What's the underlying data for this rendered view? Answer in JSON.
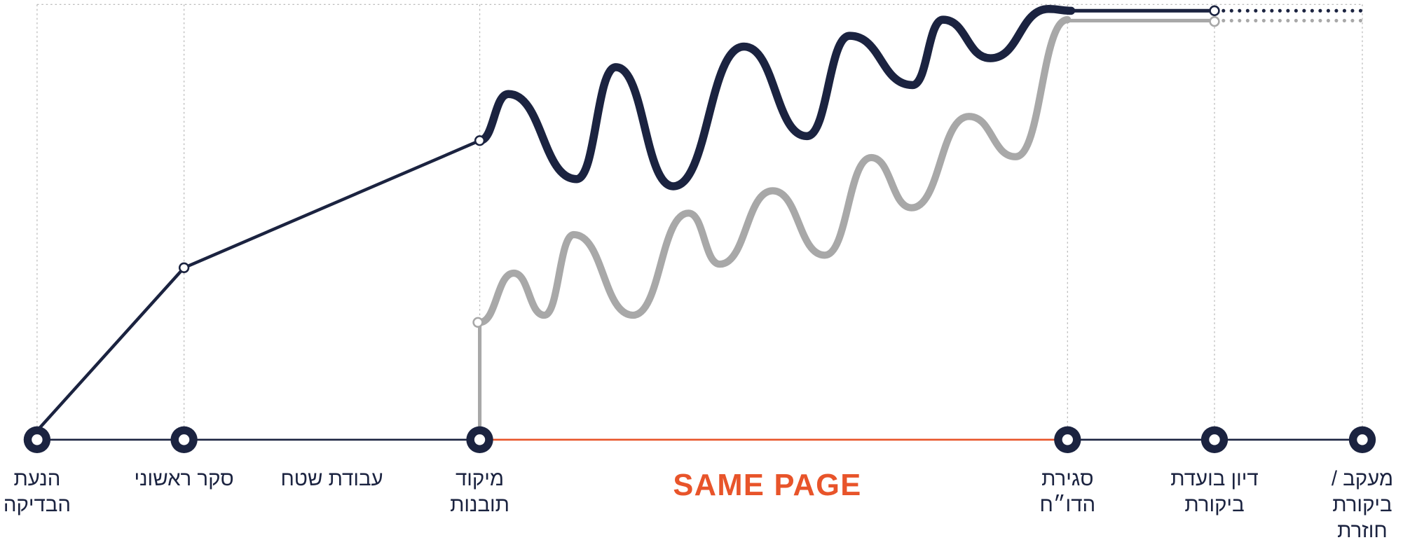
{
  "timeline": {
    "milestones": [
      {
        "lines": [
          "הנעת",
          "הבדיקה"
        ]
      },
      {
        "lines": [
          "סקר ראשוני"
        ]
      },
      {
        "lines": [
          "מיקוד",
          "תובנות"
        ]
      },
      {
        "lines": [
          "סגירת",
          "הדו״ח"
        ]
      },
      {
        "lines": [
          "דיון בועדת",
          "ביקורת"
        ]
      },
      {
        "lines": [
          "מעקב /",
          "ביקורת",
          "חוזרת"
        ]
      }
    ],
    "phase_label": "עבודת שטח",
    "highlight": "SAME PAGE"
  }
}
